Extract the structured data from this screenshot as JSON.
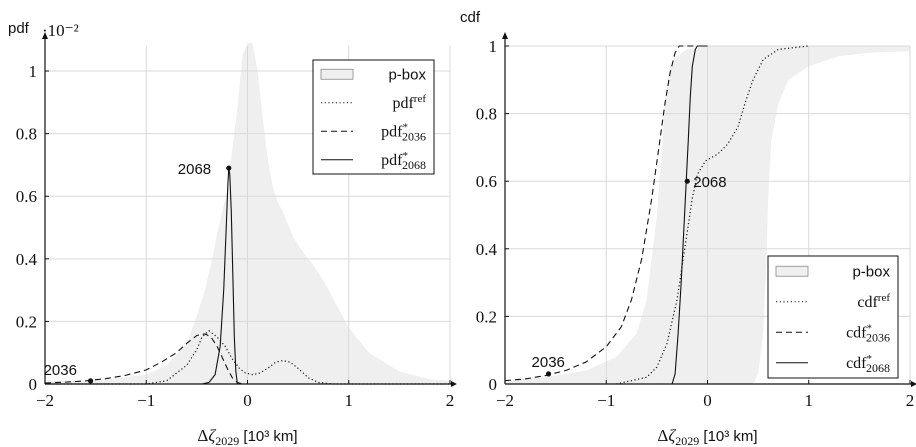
{
  "colors": {
    "pbox_fill": "#efefef",
    "grid": "#d9d9d9",
    "line": "#111111"
  },
  "chart_data": [
    {
      "type": "area",
      "ylabel": "pdf",
      "y_multiplier": "·10⁻²",
      "xlabel_main": "Δζ",
      "xlabel_sub": "2029",
      "xlabel_unit": " [10³ km]",
      "xlim": [
        -2,
        2
      ],
      "ylim": [
        0,
        1.08
      ],
      "xticks": [
        -2,
        -1,
        0,
        1,
        2
      ],
      "xtick_labels": [
        "−2",
        "−1",
        "0",
        "1",
        "2"
      ],
      "yticks": [
        0,
        0.2,
        0.4,
        0.6,
        0.8,
        1
      ],
      "ytick_labels": [
        "0",
        "0.2",
        "0.4",
        "0.6",
        "0.8",
        "1"
      ],
      "grid": true,
      "legend_position": "top-right",
      "legend": [
        {
          "label": "p-box",
          "sub": "",
          "sup": "",
          "style": "box"
        },
        {
          "label": "pdf",
          "sub": "",
          "sup": "ref",
          "style": "dotted"
        },
        {
          "label": "pdf",
          "sub": "2036",
          "sup": "*",
          "style": "dashed"
        },
        {
          "label": "pdf",
          "sub": "2068",
          "sup": "*",
          "style": "solid"
        }
      ],
      "pbox": {
        "upper": [
          [
            -2,
            0.01
          ],
          [
            -1.5,
            0.01
          ],
          [
            -1,
            0.03
          ],
          [
            -0.8,
            0.06
          ],
          [
            -0.6,
            0.13
          ],
          [
            -0.5,
            0.22
          ],
          [
            -0.42,
            0.3
          ],
          [
            -0.35,
            0.4
          ],
          [
            -0.3,
            0.48
          ],
          [
            -0.25,
            0.55
          ],
          [
            -0.2,
            0.62
          ],
          [
            -0.15,
            0.75
          ],
          [
            -0.1,
            0.88
          ],
          [
            -0.05,
            1.05
          ],
          [
            0.0,
            1.09
          ],
          [
            0.05,
            1.09
          ],
          [
            0.1,
            1.0
          ],
          [
            0.15,
            0.85
          ],
          [
            0.2,
            0.72
          ],
          [
            0.25,
            0.63
          ],
          [
            0.3,
            0.58
          ],
          [
            0.35,
            0.55
          ],
          [
            0.45,
            0.47
          ],
          [
            0.55,
            0.42
          ],
          [
            0.65,
            0.38
          ],
          [
            0.75,
            0.33
          ],
          [
            0.85,
            0.27
          ],
          [
            1.0,
            0.18
          ],
          [
            1.2,
            0.1
          ],
          [
            1.5,
            0.04
          ],
          [
            1.8,
            0.015
          ],
          [
            2,
            0.01
          ]
        ],
        "lower": [
          [
            -2,
            0
          ],
          [
            2,
            0
          ]
        ]
      },
      "series": [
        {
          "name": "pdf_ref",
          "style": "dotted",
          "points": [
            [
              -2,
              0
            ],
            [
              -1,
              0.0
            ],
            [
              -0.8,
              0.01
            ],
            [
              -0.6,
              0.06
            ],
            [
              -0.5,
              0.11
            ],
            [
              -0.45,
              0.15
            ],
            [
              -0.38,
              0.17
            ],
            [
              -0.3,
              0.15
            ],
            [
              -0.22,
              0.12
            ],
            [
              -0.15,
              0.08
            ],
            [
              -0.08,
              0.05
            ],
            [
              -0.02,
              0.035
            ],
            [
              0.05,
              0.03
            ],
            [
              0.12,
              0.035
            ],
            [
              0.2,
              0.05
            ],
            [
              0.28,
              0.07
            ],
            [
              0.35,
              0.075
            ],
            [
              0.42,
              0.07
            ],
            [
              0.5,
              0.05
            ],
            [
              0.6,
              0.02
            ],
            [
              0.7,
              0.005
            ],
            [
              0.85,
              0.0
            ],
            [
              2,
              0
            ]
          ]
        },
        {
          "name": "pdf_2036",
          "style": "dashed",
          "points": [
            [
              -2,
              0.003
            ],
            [
              -1.8,
              0.006
            ],
            [
              -1.6,
              0.01
            ],
            [
              -1.4,
              0.017
            ],
            [
              -1.2,
              0.028
            ],
            [
              -1.0,
              0.045
            ],
            [
              -0.85,
              0.07
            ],
            [
              -0.7,
              0.1
            ],
            [
              -0.6,
              0.13
            ],
            [
              -0.5,
              0.155
            ],
            [
              -0.42,
              0.16
            ],
            [
              -0.36,
              0.15
            ],
            [
              -0.3,
              0.12
            ],
            [
              -0.25,
              0.085
            ],
            [
              -0.2,
              0.05
            ],
            [
              -0.15,
              0.02
            ],
            [
              -0.1,
              0.005
            ],
            [
              -0.05,
              0.0
            ]
          ]
        },
        {
          "name": "pdf_2068",
          "style": "solid",
          "points": [
            [
              -0.45,
              0.0
            ],
            [
              -0.38,
              0.005
            ],
            [
              -0.32,
              0.03
            ],
            [
              -0.27,
              0.12
            ],
            [
              -0.235,
              0.3
            ],
            [
              -0.21,
              0.5
            ],
            [
              -0.195,
              0.63
            ],
            [
              -0.185,
              0.69
            ],
            [
              -0.175,
              0.67
            ],
            [
              -0.16,
              0.55
            ],
            [
              -0.145,
              0.35
            ],
            [
              -0.13,
              0.15
            ],
            [
              -0.115,
              0.04
            ],
            [
              -0.1,
              0.0
            ]
          ]
        }
      ],
      "annotations": [
        {
          "text": "2036",
          "x": -1.55,
          "y": 0.01,
          "anchor": "above-left"
        },
        {
          "text": "2068",
          "x": -0.185,
          "y": 0.69,
          "anchor": "left"
        }
      ]
    },
    {
      "type": "area",
      "ylabel": "cdf",
      "y_multiplier": "",
      "xlabel_main": "Δζ",
      "xlabel_sub": "2029",
      "xlabel_unit": " [10³ km]",
      "xlim": [
        -2,
        2
      ],
      "ylim": [
        0,
        1
      ],
      "xticks": [
        -2,
        -1,
        0,
        1,
        2
      ],
      "xtick_labels": [
        "−2",
        "−1",
        "0",
        "1",
        "2"
      ],
      "yticks": [
        0,
        0.2,
        0.4,
        0.6,
        0.8,
        1
      ],
      "ytick_labels": [
        "0",
        "0.2",
        "0.4",
        "0.6",
        "0.8",
        "1"
      ],
      "grid": true,
      "legend_position": "bottom-right",
      "legend": [
        {
          "label": "p-box",
          "sub": "",
          "sup": "",
          "style": "box"
        },
        {
          "label": "cdf",
          "sub": "",
          "sup": "ref",
          "style": "dotted"
        },
        {
          "label": "cdf",
          "sub": "2036",
          "sup": "*",
          "style": "dashed"
        },
        {
          "label": "cdf",
          "sub": "2068",
          "sup": "*",
          "style": "solid"
        }
      ],
      "pbox": {
        "upper": [
          [
            -2,
            0.01
          ],
          [
            -1.6,
            0.02
          ],
          [
            -1.2,
            0.04
          ],
          [
            -0.9,
            0.08
          ],
          [
            -0.7,
            0.15
          ],
          [
            -0.6,
            0.25
          ],
          [
            -0.5,
            0.5
          ],
          [
            -0.42,
            0.82
          ],
          [
            -0.38,
            0.93
          ],
          [
            -0.3,
            0.97
          ],
          [
            -0.2,
            0.99
          ],
          [
            0.0,
            1.0
          ],
          [
            2,
            1.0
          ]
        ],
        "lower": [
          [
            -2,
            0
          ],
          [
            0.45,
            0.0
          ],
          [
            0.5,
            0.03
          ],
          [
            0.55,
            0.15
          ],
          [
            0.58,
            0.35
          ],
          [
            0.6,
            0.55
          ],
          [
            0.63,
            0.72
          ],
          [
            0.7,
            0.83
          ],
          [
            0.8,
            0.9
          ],
          [
            1.0,
            0.94
          ],
          [
            1.3,
            0.97
          ],
          [
            1.6,
            0.98
          ],
          [
            2,
            0.985
          ]
        ]
      },
      "series": [
        {
          "name": "cdf_ref",
          "style": "dotted",
          "points": [
            [
              -0.9,
              0.0
            ],
            [
              -0.6,
              0.02
            ],
            [
              -0.5,
              0.05
            ],
            [
              -0.4,
              0.12
            ],
            [
              -0.3,
              0.25
            ],
            [
              -0.2,
              0.45
            ],
            [
              -0.15,
              0.55
            ],
            [
              -0.1,
              0.62
            ],
            [
              -0.02,
              0.66
            ],
            [
              0.1,
              0.68
            ],
            [
              0.2,
              0.71
            ],
            [
              0.3,
              0.76
            ],
            [
              0.38,
              0.84
            ],
            [
              0.45,
              0.9
            ],
            [
              0.55,
              0.96
            ],
            [
              0.7,
              0.99
            ],
            [
              1.0,
              1.0
            ]
          ]
        },
        {
          "name": "cdf_2036",
          "style": "dashed",
          "points": [
            [
              -2,
              0.01
            ],
            [
              -1.8,
              0.015
            ],
            [
              -1.6,
              0.025
            ],
            [
              -1.4,
              0.04
            ],
            [
              -1.2,
              0.065
            ],
            [
              -1.0,
              0.11
            ],
            [
              -0.85,
              0.17
            ],
            [
              -0.75,
              0.25
            ],
            [
              -0.65,
              0.37
            ],
            [
              -0.55,
              0.55
            ],
            [
              -0.48,
              0.7
            ],
            [
              -0.42,
              0.83
            ],
            [
              -0.37,
              0.92
            ],
            [
              -0.32,
              0.98
            ],
            [
              -0.28,
              1.0
            ],
            [
              -0.05,
              1.0
            ]
          ]
        },
        {
          "name": "cdf_2068",
          "style": "solid",
          "points": [
            [
              -0.35,
              0.0
            ],
            [
              -0.32,
              0.03
            ],
            [
              -0.29,
              0.15
            ],
            [
              -0.26,
              0.3
            ],
            [
              -0.235,
              0.45
            ],
            [
              -0.21,
              0.6
            ],
            [
              -0.19,
              0.72
            ],
            [
              -0.17,
              0.85
            ],
            [
              -0.15,
              0.94
            ],
            [
              -0.12,
              0.99
            ],
            [
              -0.1,
              1.0
            ],
            [
              0.0,
              1.0
            ]
          ]
        }
      ],
      "annotations": [
        {
          "text": "2036",
          "x": -1.57,
          "y": 0.03,
          "anchor": "above-left"
        },
        {
          "text": "2068",
          "x": -0.2,
          "y": 0.6,
          "anchor": "right"
        }
      ]
    }
  ]
}
